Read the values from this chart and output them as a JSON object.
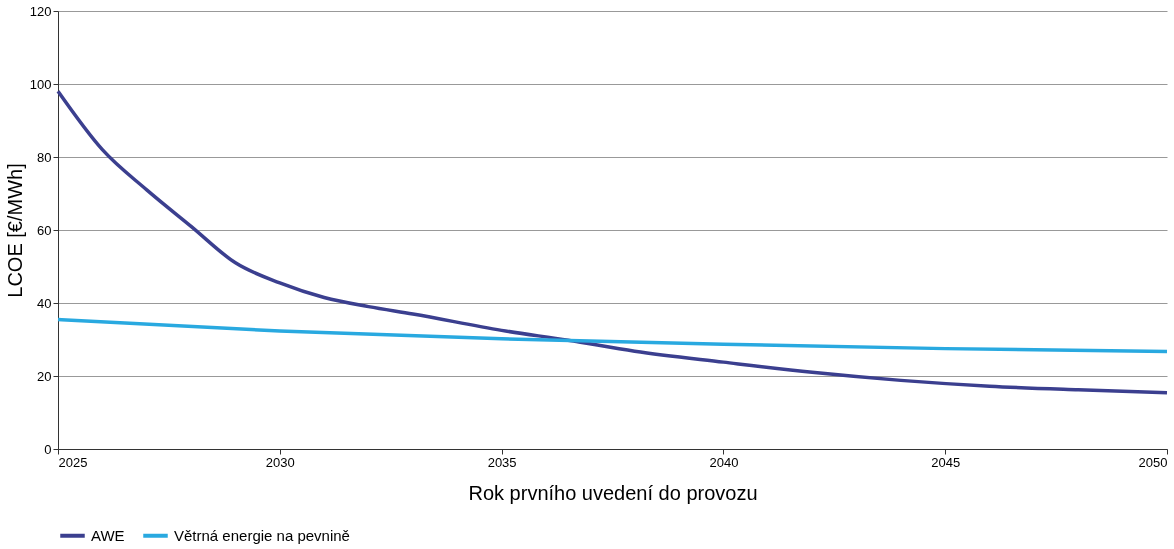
{
  "chart_data": {
    "type": "line",
    "xlabel": "Rok prvního uvedení do provozu",
    "ylabel": "LCOE [€/MWh]",
    "xlim": [
      2025,
      2050
    ],
    "xticks": [
      2025,
      2030,
      2035,
      2040,
      2045,
      2050
    ],
    "ylim": [
      0,
      120
    ],
    "yticks": [
      0,
      20,
      40,
      60,
      80,
      100,
      120
    ],
    "grid": "y",
    "legend": "bottom",
    "line_style": "solid",
    "marker": "none",
    "series": [
      {
        "name": "AWE",
        "color": "#3b3f8f",
        "x": [
          2025,
          2026,
          2027,
          2028,
          2029,
          2030,
          2031,
          2032,
          2033,
          2035,
          2036.5,
          2038,
          2040,
          2042,
          2044,
          2046,
          2048,
          2050
        ],
        "values": [
          98,
          82,
          71,
          61,
          51,
          45.5,
          41.5,
          39,
          37,
          32.5,
          29.8,
          26.8,
          23.8,
          21,
          18.8,
          17.2,
          16.2,
          15.4
        ]
      },
      {
        "name": "Větrná energie na pevnině",
        "color": "#29a9e0",
        "x": [
          2025,
          2030,
          2035,
          2040,
          2045,
          2050
        ],
        "values": [
          35.5,
          32.3,
          30.2,
          28.7,
          27.5,
          26.7
        ]
      }
    ]
  }
}
